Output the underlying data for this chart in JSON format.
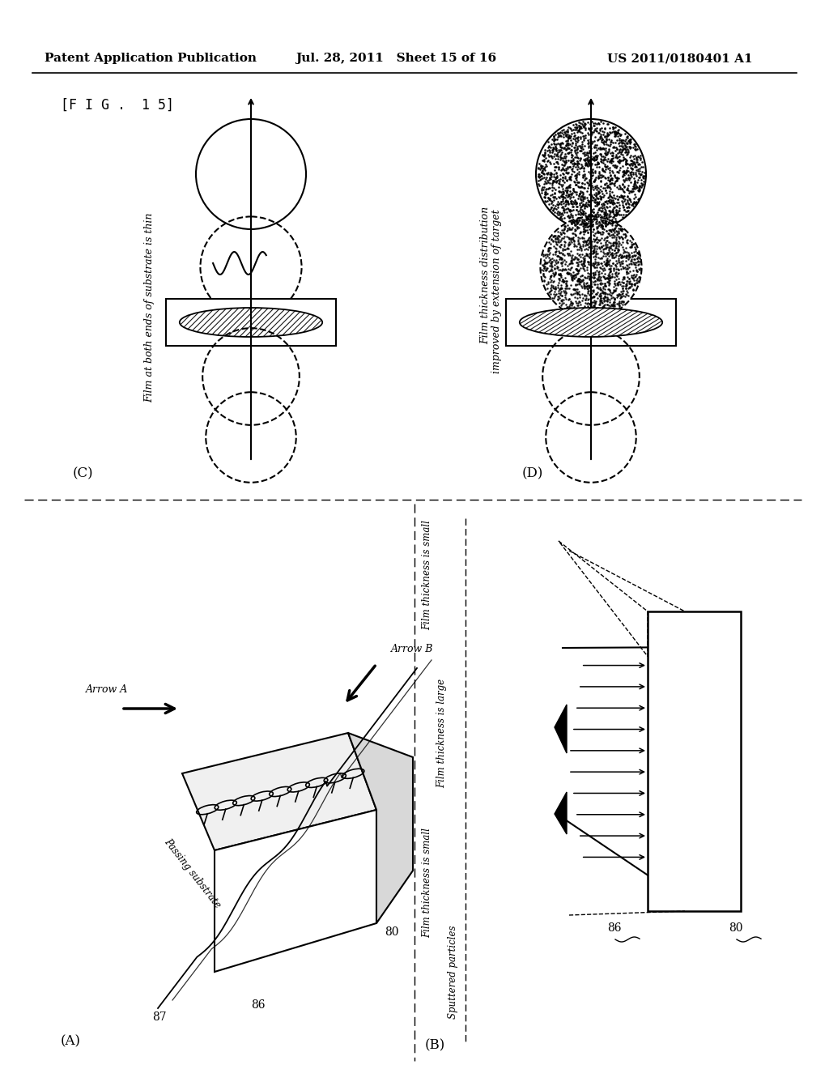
{
  "bg_color": "#ffffff",
  "header_left": "Patent Application Publication",
  "header_mid": "Jul. 28, 2011   Sheet 15 of 16",
  "header_right": "US 2011/0180401 A1",
  "fig_label": "[F I G .  1 5]",
  "panel_C_label": "(C)",
  "panel_D_label": "(D)",
  "panel_A_label": "(A)",
  "panel_B_label": "(B)",
  "text_C_rotated": "Film at both ends of substrate is thin",
  "text_D_rotated1": "Film thickness distribution",
  "text_D_rotated2": "improved by extension of target",
  "text_B_filmsmall_top": "Film thickness is small",
  "text_B_filmlarge": "Film thickness is large",
  "text_B_filmsmall_bot": "Film thickness is small",
  "text_B_sputtered": "Sputtered particles",
  "text_A_arrowA": "Arrow A",
  "text_A_arrowB": "Arrow B",
  "text_A_passing": "Passing substrate",
  "label_87": "87",
  "label_86_A": "86",
  "label_80_A": "80",
  "label_86_B": "86",
  "label_80_B": "80"
}
